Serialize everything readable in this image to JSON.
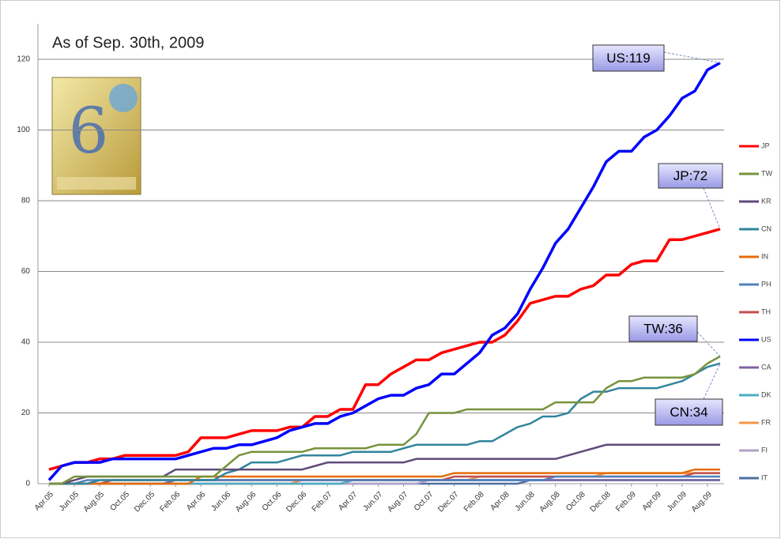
{
  "chart_data": {
    "type": "line",
    "title": "As of Sep. 30th, 2009",
    "categories": [
      "Apr.05",
      null,
      "Jun.05",
      null,
      "Aug.05",
      null,
      "Oct.05",
      null,
      "Dec.05",
      null,
      "Feb.06",
      null,
      "Apr.06",
      null,
      "Jun.06",
      null,
      "Aug.06",
      null,
      "Oct.06",
      null,
      "Dec.06",
      null,
      "Feb.07",
      null,
      "Apr.07",
      null,
      "Jun.07",
      null,
      "Aug.07",
      null,
      "Oct.07",
      null,
      "Dec.07",
      null,
      "Feb.08",
      null,
      "Apr.08",
      null,
      "Jun.08",
      null,
      "Aug.08",
      null,
      "Oct.08",
      null,
      "Dec.08",
      null,
      "Feb.09",
      null,
      "Apr.09",
      null,
      "Jun.09",
      null,
      "Aug.09",
      null
    ],
    "ylim": [
      0,
      120
    ],
    "yticks": [
      0,
      20,
      40,
      60,
      80,
      100,
      120
    ],
    "grid": true,
    "series": [
      {
        "name": "JP",
        "color": "#ff0000",
        "values": [
          4,
          5,
          6,
          6,
          7,
          7,
          8,
          8,
          8,
          8,
          8,
          9,
          13,
          13,
          13,
          14,
          15,
          15,
          15,
          16,
          16,
          19,
          19,
          21,
          21,
          28,
          28,
          31,
          33,
          35,
          35,
          37,
          38,
          39,
          40,
          40,
          42,
          46,
          51,
          52,
          53,
          53,
          55,
          56,
          59,
          59,
          62,
          63,
          63,
          69,
          69,
          70,
          71,
          72
        ]
      },
      {
        "name": "TW",
        "color": "#77933c",
        "values": [
          0,
          0,
          2,
          2,
          2,
          2,
          2,
          2,
          2,
          2,
          2,
          2,
          2,
          2,
          5,
          8,
          9,
          9,
          9,
          9,
          9,
          10,
          10,
          10,
          10,
          10,
          11,
          11,
          11,
          14,
          20,
          20,
          20,
          21,
          21,
          21,
          21,
          21,
          21,
          21,
          23,
          23,
          23,
          23,
          27,
          29,
          29,
          30,
          30,
          30,
          30,
          31,
          34,
          36
        ]
      },
      {
        "name": "KR",
        "color": "#604a7b",
        "values": [
          0,
          0,
          1,
          2,
          2,
          2,
          2,
          2,
          2,
          2,
          4,
          4,
          4,
          4,
          4,
          4,
          4,
          4,
          4,
          4,
          4,
          5,
          6,
          6,
          6,
          6,
          6,
          6,
          6,
          7,
          7,
          7,
          7,
          7,
          7,
          7,
          7,
          7,
          7,
          7,
          7,
          8,
          9,
          10,
          11,
          11,
          11,
          11,
          11,
          11,
          11,
          11,
          11,
          11
        ]
      },
      {
        "name": "CN",
        "color": "#31859c",
        "values": [
          0,
          0,
          0,
          0,
          1,
          1,
          1,
          1,
          1,
          1,
          1,
          1,
          1,
          1,
          3,
          4,
          6,
          6,
          6,
          7,
          8,
          8,
          8,
          8,
          9,
          9,
          9,
          9,
          10,
          11,
          11,
          11,
          11,
          11,
          12,
          12,
          14,
          16,
          17,
          19,
          19,
          20,
          24,
          26,
          26,
          27,
          27,
          27,
          27,
          28,
          29,
          31,
          33,
          34
        ]
      },
      {
        "name": "IN",
        "color": "#e46c0a",
        "values": [
          0,
          0,
          0,
          0,
          0,
          0,
          0,
          0,
          0,
          0,
          0,
          0,
          2,
          2,
          2,
          2,
          2,
          2,
          2,
          2,
          2,
          2,
          2,
          2,
          2,
          2,
          2,
          2,
          2,
          2,
          2,
          2,
          3,
          3,
          3,
          3,
          3,
          3,
          3,
          3,
          3,
          3,
          3,
          3,
          3,
          3,
          3,
          3,
          3,
          3,
          3,
          4,
          4,
          4
        ]
      },
      {
        "name": "PH",
        "color": "#4f81bd",
        "values": [
          0,
          0,
          0,
          1,
          1,
          1,
          1,
          1,
          1,
          1,
          1,
          1,
          1,
          1,
          1,
          1,
          1,
          1,
          1,
          1,
          1,
          1,
          1,
          1,
          1,
          1,
          1,
          1,
          1,
          1,
          1,
          1,
          1,
          1,
          1,
          1,
          1,
          1,
          1,
          1,
          2,
          2,
          2,
          2,
          2,
          2,
          2,
          2,
          2,
          2,
          2,
          2,
          2,
          2
        ]
      },
      {
        "name": "TH",
        "color": "#c0504d",
        "values": [
          0,
          0,
          0,
          0,
          0,
          1,
          1,
          1,
          1,
          1,
          1,
          1,
          1,
          1,
          1,
          1,
          1,
          1,
          1,
          1,
          1,
          1,
          1,
          1,
          1,
          1,
          1,
          1,
          1,
          1,
          1,
          1,
          2,
          2,
          2,
          2,
          2,
          2,
          2,
          2,
          2,
          2,
          2,
          2,
          2,
          2,
          2,
          2,
          2,
          2,
          2,
          3,
          3,
          3
        ]
      },
      {
        "name": "US",
        "color": "#0000ff",
        "values": [
          1,
          5,
          6,
          6,
          6,
          7,
          7,
          7,
          7,
          7,
          7,
          8,
          9,
          10,
          10,
          11,
          11,
          12,
          13,
          15,
          16,
          17,
          17,
          19,
          20,
          22,
          24,
          25,
          25,
          27,
          28,
          31,
          31,
          34,
          37,
          42,
          44,
          48,
          55,
          61,
          68,
          72,
          78,
          84,
          91,
          94,
          94,
          98,
          100,
          104,
          109,
          111,
          117,
          119
        ]
      },
      {
        "name": "CA",
        "color": "#8064a2",
        "values": [
          0,
          0,
          0,
          0,
          0,
          0,
          0,
          0,
          0,
          0,
          1,
          1,
          1,
          1,
          1,
          1,
          1,
          1,
          1,
          1,
          1,
          1,
          1,
          1,
          1,
          1,
          1,
          1,
          1,
          1,
          1,
          1,
          1,
          1,
          1,
          1,
          1,
          1,
          1,
          1,
          1,
          1,
          1,
          1,
          1,
          1,
          1,
          1,
          1,
          1,
          1,
          1,
          1,
          1
        ]
      },
      {
        "name": "DK",
        "color": "#4bacc6",
        "values": [
          0,
          0,
          0,
          0,
          0,
          0,
          0,
          0,
          0,
          0,
          0,
          0,
          0,
          0,
          0,
          0,
          0,
          0,
          0,
          0,
          0,
          0,
          0,
          0,
          1,
          1,
          1,
          1,
          1,
          1,
          1,
          1,
          1,
          1,
          1,
          1,
          1,
          1,
          1,
          1,
          1,
          1,
          1,
          1,
          1,
          1,
          1,
          1,
          1,
          1,
          1,
          1,
          1,
          1
        ]
      },
      {
        "name": "FR",
        "color": "#f79646",
        "values": [
          0,
          0,
          0,
          0,
          0,
          0,
          0,
          0,
          0,
          0,
          0,
          0,
          0,
          0,
          0,
          0,
          0,
          0,
          0,
          0,
          1,
          1,
          1,
          1,
          1,
          1,
          1,
          1,
          1,
          1,
          1,
          1,
          1,
          1,
          2,
          2,
          2,
          2,
          2,
          2,
          2,
          2,
          2,
          2,
          3,
          3,
          3,
          3,
          3,
          3,
          3,
          3,
          3,
          3
        ]
      },
      {
        "name": "FI",
        "color": "#b3a2c7",
        "values": [
          0,
          0,
          0,
          0,
          0,
          0,
          0,
          0,
          0,
          0,
          0,
          0,
          0,
          0,
          0,
          0,
          0,
          0,
          0,
          0,
          0,
          0,
          0,
          0,
          0,
          0,
          0,
          0,
          0,
          0,
          1,
          1,
          1,
          1,
          1,
          1,
          1,
          1,
          1,
          1,
          1,
          1,
          1,
          1,
          1,
          1,
          1,
          1,
          1,
          1,
          1,
          1,
          1,
          1
        ]
      },
      {
        "name": "IT",
        "color": "#4f6fa0",
        "values": [
          0,
          0,
          0,
          0,
          0,
          0,
          0,
          0,
          0,
          0,
          0,
          0,
          0,
          0,
          0,
          0,
          0,
          0,
          0,
          0,
          0,
          0,
          0,
          0,
          0,
          0,
          0,
          0,
          0,
          0,
          0,
          0,
          0,
          0,
          0,
          0,
          0,
          0,
          1,
          1,
          1,
          1,
          1,
          1,
          1,
          1,
          1,
          1,
          1,
          1,
          1,
          1,
          1,
          1
        ]
      }
    ],
    "annotations": [
      "US:119",
      "JP:72",
      "TW:36",
      "CN:34"
    ]
  }
}
